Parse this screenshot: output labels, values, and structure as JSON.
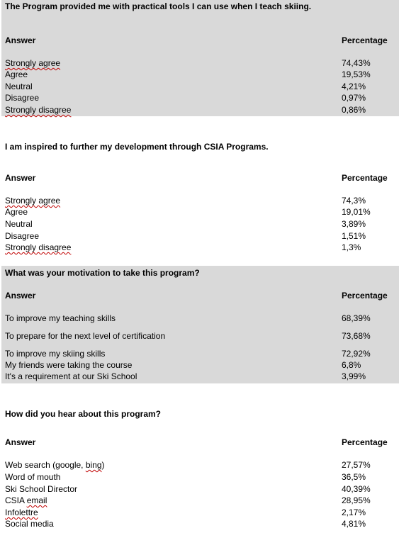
{
  "answer_header": "Answer",
  "percentage_header": "Percentage",
  "sections": [
    {
      "question": "The Program provided me with practical tools I can use when I teach skiing.",
      "rows": [
        {
          "answer": "Strongly agree",
          "percentage": "74,43%"
        },
        {
          "answer": "Agree",
          "percentage": "19,53%"
        },
        {
          "answer": "Neutral",
          "percentage": "4,21%"
        },
        {
          "answer": "Disagree",
          "percentage": "0,97%"
        },
        {
          "answer": "Strongly disagree",
          "percentage": "0,86%"
        }
      ]
    },
    {
      "question": "I am inspired to further my development through CSIA Programs.",
      "rows": [
        {
          "answer": "Strongly agree",
          "percentage": "74,3%"
        },
        {
          "answer": "Agree",
          "percentage": "19,01%"
        },
        {
          "answer": "Neutral",
          "percentage": "3,89%"
        },
        {
          "answer": "Disagree",
          "percentage": "1,51%"
        },
        {
          "answer": "Strongly disagree",
          "percentage": "1,3%"
        }
      ]
    },
    {
      "question": "What was your motivation to take this program?",
      "rows": [
        {
          "answer": "To improve my teaching skills",
          "percentage": "68,39%"
        },
        {
          "answer": "To prepare for the next level of certification",
          "percentage": "73,68%"
        },
        {
          "answer": "To improve my skiing skills",
          "percentage": "72,92%"
        },
        {
          "answer": "My friends were taking the course",
          "percentage": "6,8%"
        },
        {
          "answer": "It's a requirement at our Ski School",
          "percentage": "3,99%"
        }
      ]
    },
    {
      "question": "How did you hear about this program?",
      "rows": [
        {
          "answer": "Web search (google, bing)",
          "percentage": "27,57%"
        },
        {
          "answer": "Word of mouth",
          "percentage": "36,5%"
        },
        {
          "answer": "Ski School Director",
          "percentage": "40,39%"
        },
        {
          "answer": "CSIA email",
          "percentage": "28,95%"
        },
        {
          "answer": "Infolettre",
          "percentage": "2,17%"
        },
        {
          "answer": "Social media",
          "percentage": "4,81%"
        }
      ]
    }
  ]
}
